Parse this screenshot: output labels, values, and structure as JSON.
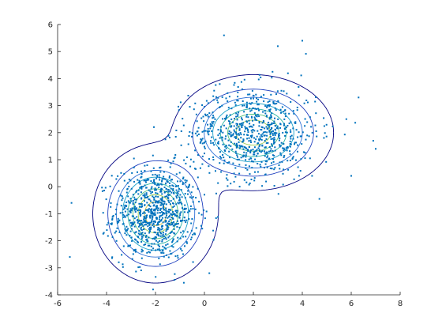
{
  "chart_data": {
    "type": "scatter",
    "title": "",
    "xlabel": "",
    "ylabel": "",
    "xlim": [
      -6,
      8
    ],
    "ylim": [
      -4,
      6
    ],
    "grid": false,
    "box": "open",
    "xticks": [
      -6,
      -4,
      -2,
      0,
      2,
      4,
      6,
      8
    ],
    "yticks": [
      -4,
      -3,
      -2,
      -1,
      0,
      1,
      2,
      3,
      4,
      5,
      6
    ],
    "xtick_labels": [
      "-6",
      "-4",
      "-2",
      "0",
      "2",
      "4",
      "6",
      "8"
    ],
    "ytick_labels": [
      "-4",
      "-3",
      "-2",
      "-1",
      "0",
      "1",
      "2",
      "3",
      "4",
      "5",
      "6"
    ],
    "scatter": {
      "marker": "point",
      "color": "#0072BD",
      "clusters": [
        {
          "center": [
            -2,
            -1
          ],
          "std": [
            0.85,
            0.85
          ],
          "count": 850
        },
        {
          "center": [
            2,
            2
          ],
          "std": [
            1.3,
            0.85
          ],
          "count": 750
        }
      ],
      "outliers": [
        [
          -5.5,
          -2.6
        ],
        [
          5.8,
          2.5
        ],
        [
          7.0,
          1.4
        ],
        [
          6.9,
          1.7
        ],
        [
          6.3,
          3.3
        ],
        [
          4.0,
          5.4
        ],
        [
          0.8,
          5.6
        ],
        [
          4.4,
          0.4
        ],
        [
          6.0,
          0.4
        ],
        [
          0.2,
          -3.2
        ],
        [
          -2.1,
          -3.8
        ],
        [
          3.0,
          5.2
        ]
      ]
    },
    "contour": {
      "levels": [
        0.003,
        0.012,
        0.022,
        0.032,
        0.042,
        0.052,
        0.062,
        0.072
      ],
      "colormap": [
        "#000080",
        "#1f3fbf",
        "#2c6fd6",
        "#1aa0c8",
        "#2ab5a0",
        "#54c27a",
        "#9ccb4c",
        "#e0c93a"
      ],
      "components": [
        {
          "mean": [
            -2,
            -1
          ],
          "sigma": [
            1.0,
            1.0
          ],
          "weight": 0.5
        },
        {
          "mean": [
            2,
            2
          ],
          "sigma": [
            1.3,
            0.85
          ],
          "weight": 0.5
        }
      ]
    }
  }
}
